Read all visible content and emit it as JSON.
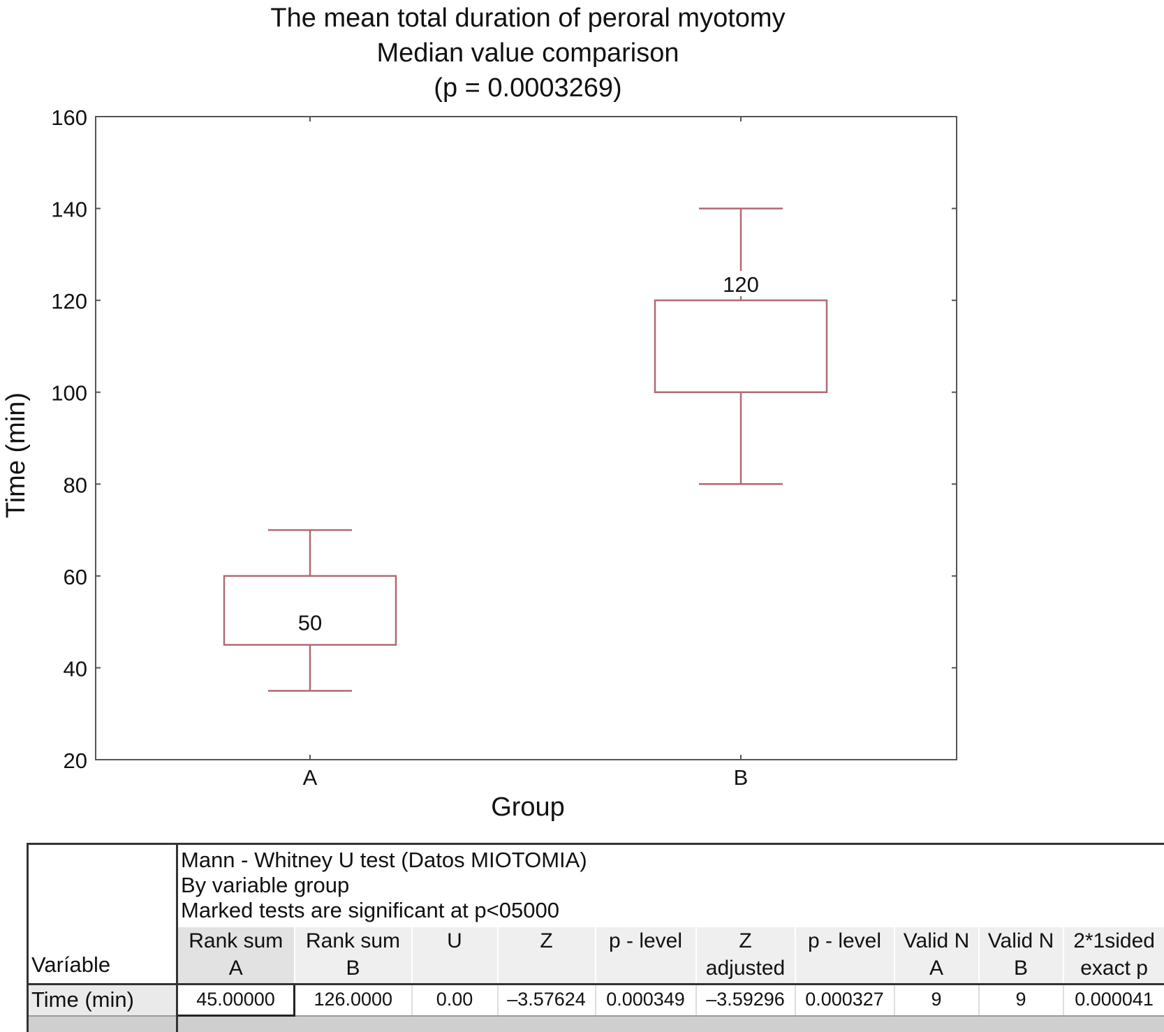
{
  "chart_data": {
    "type": "box",
    "title": [
      "The mean total duration of peroral myotomy",
      "Median value comparison",
      "(p = 0.0003269)"
    ],
    "xlabel": "Group",
    "ylabel": "Time (min)",
    "ylim": [
      20,
      160
    ],
    "yticks": [
      20,
      40,
      60,
      80,
      100,
      120,
      140,
      160
    ],
    "categories": [
      "A",
      "B"
    ],
    "grid": false,
    "boxes": [
      {
        "category": "A",
        "whisker_low": 35,
        "q1": 45,
        "median": 50,
        "q3": 60,
        "whisker_high": 70,
        "label": "50"
      },
      {
        "category": "B",
        "whisker_low": 80,
        "q1": 100,
        "median": 120,
        "q3": 120,
        "whisker_high": 140,
        "label": "120"
      }
    ],
    "colors": {
      "box": "#b06a72",
      "axis": "#444444"
    }
  },
  "table": {
    "variable_header": "Varíable",
    "caption": [
      "Mann - Whitney U test (Datos MIOTOMIA)",
      "By variable group",
      "Marked tests are significant at p<05000"
    ],
    "columns": [
      "Rank sum\nA",
      "Rank sum\nB",
      "U",
      "Z",
      "p - level",
      "Z\nadjusted",
      "p - level",
      "Valid N\nA",
      "Valid N\nB",
      "2*1sided\nexact p"
    ],
    "rows": [
      {
        "label": "Time (min)",
        "values": [
          "45.00000",
          "126.0000",
          "0.00",
          "–3.57624",
          "0.000349",
          "–3.59296",
          "0.000327",
          "9",
          "9",
          "0.000041"
        ]
      }
    ]
  }
}
